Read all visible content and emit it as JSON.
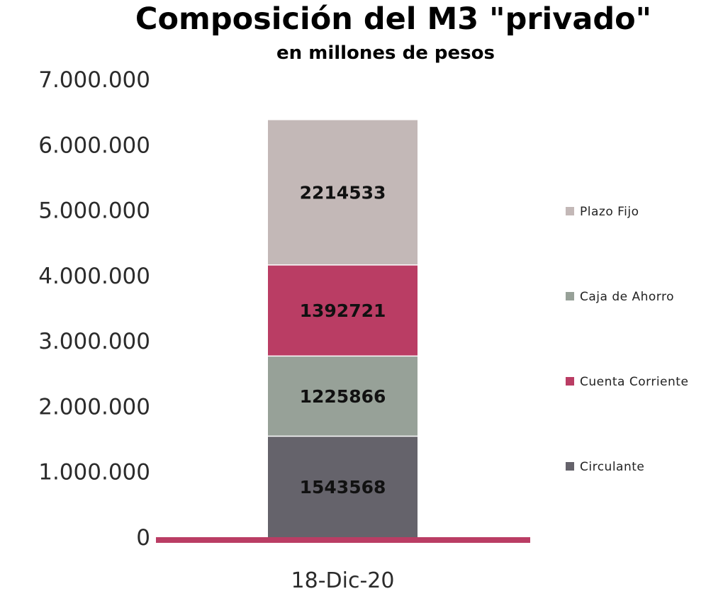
{
  "title": "Composición del M3 \"privado\"",
  "subtitle": "en millones de pesos",
  "chart_data": {
    "type": "bar",
    "stacked": true,
    "categories": [
      "18-Dic-20"
    ],
    "series": [
      {
        "name": "Circulante",
        "values": [
          1543568
        ],
        "color": "#65636b"
      },
      {
        "name": "Cuenta Corriente",
        "values": [
          1392721
        ],
        "color": "#ba3d64"
      },
      {
        "name": "Caja de Ahorro",
        "values": [
          1225866
        ],
        "color": "#97a198"
      },
      {
        "name": "Plazo Fijo",
        "values": [
          2214533
        ],
        "color": "#c3b8b7"
      }
    ],
    "stack_order": [
      "Circulante",
      "Caja de Ahorro",
      "Cuenta Corriente",
      "Plazo Fijo"
    ],
    "data_labels": [
      "1543568",
      "1225866",
      "1392721",
      "2214533"
    ],
    "legend_order": [
      "Plazo Fijo",
      "Caja de Ahorro",
      "Cuenta Corriente",
      "Circulante"
    ],
    "yticks": [
      "0",
      "1.000.000",
      "2.000.000",
      "3.000.000",
      "4.000.000",
      "5.000.000",
      "6.000.000",
      "7.000.000"
    ],
    "ylim": [
      0,
      7000000
    ],
    "grid": false,
    "legend_position": "right",
    "axis_line_color": "#ba3d64"
  }
}
